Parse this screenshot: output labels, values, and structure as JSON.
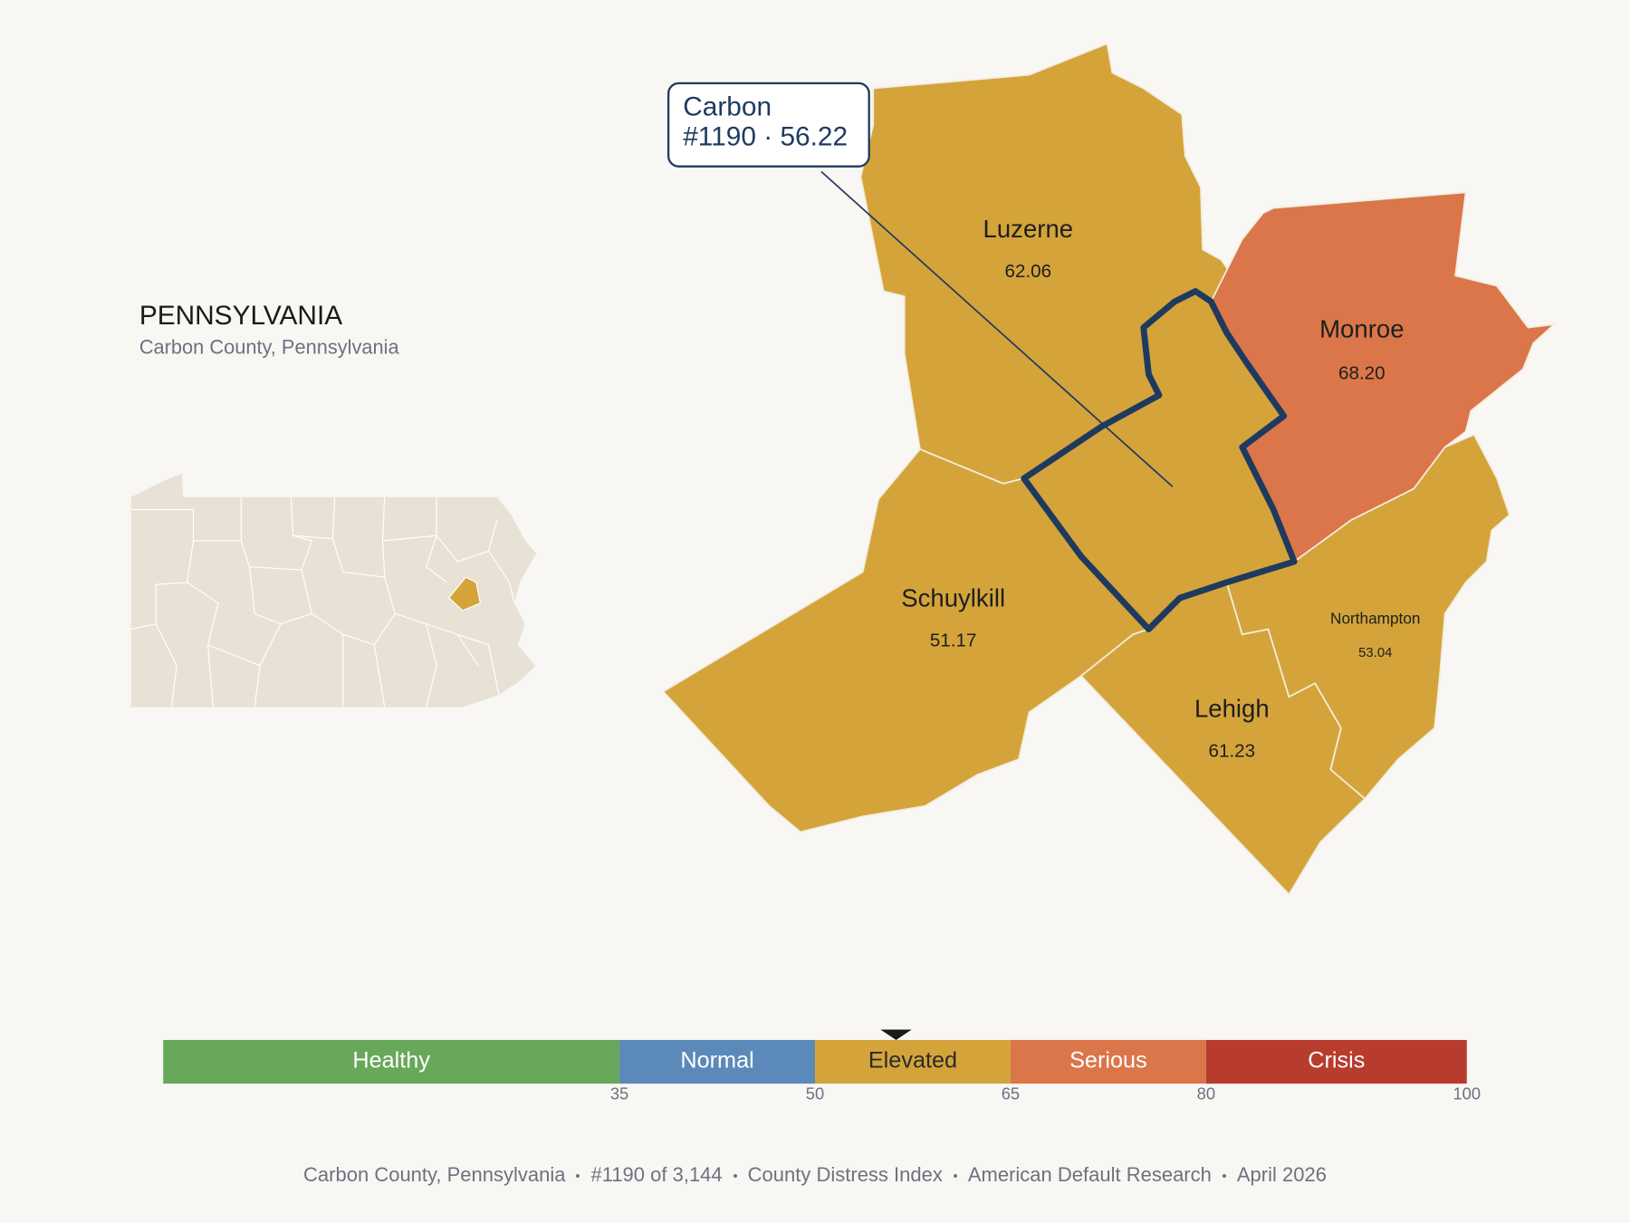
{
  "header": {
    "title": "PENNSYLVANIA",
    "subtitle": "Carbon County, Pennsylvania"
  },
  "selected": {
    "name": "Carbon",
    "rank": 1190,
    "score": 56.22,
    "callout": "#1190 · 56.22"
  },
  "counties": [
    {
      "name": "Luzerne",
      "value": 62.06,
      "value_label": "62.06"
    },
    {
      "name": "Monroe",
      "value": 68.2,
      "value_label": "68.20"
    },
    {
      "name": "Schuylkill",
      "value": 51.17,
      "value_label": "51.17"
    },
    {
      "name": "Lehigh",
      "value": 61.23,
      "value_label": "61.23"
    },
    {
      "name": "Northampton",
      "value": 53.04,
      "value_label": "53.04"
    }
  ],
  "scale": {
    "range": [
      0,
      100
    ],
    "ticks": [
      35,
      50,
      65,
      80,
      100
    ],
    "bands": [
      {
        "label": "Healthy",
        "color": "#67a85a",
        "label_color": "#ffffff"
      },
      {
        "label": "Normal",
        "color": "#5b8aba",
        "label_color": "#ffffff"
      },
      {
        "label": "Elevated",
        "color": "#d4a43a",
        "label_color": "#2a2a2a"
      },
      {
        "label": "Serious",
        "color": "#db764a",
        "label_color": "#ffffff"
      },
      {
        "label": "Crisis",
        "color": "#b83c2e",
        "label_color": "#ffffff"
      }
    ]
  },
  "footer": [
    "Carbon County, Pennsylvania",
    "#1190 of 3,144",
    "County Distress Index",
    "American Default Research",
    "April 2026"
  ]
}
